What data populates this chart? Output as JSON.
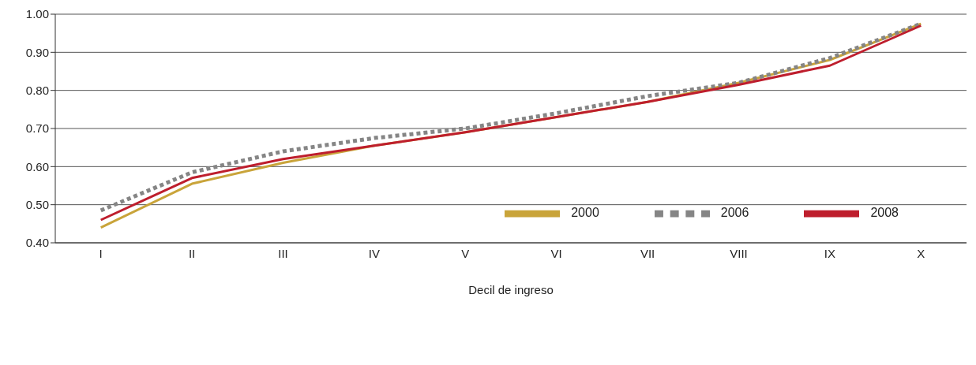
{
  "chart_data": {
    "type": "line",
    "xlabel": "Decil de ingreso",
    "categories": [
      "I",
      "II",
      "III",
      "IV",
      "V",
      "VI",
      "VII",
      "VIII",
      "IX",
      "X"
    ],
    "series": [
      {
        "name": "2000",
        "color": "#c9a43a",
        "values": [
          0.44,
          0.555,
          0.61,
          0.655,
          0.69,
          0.73,
          0.77,
          0.82,
          0.88,
          0.975
        ]
      },
      {
        "name": "2006",
        "color": "#858585",
        "line_style": "dotted",
        "values": [
          0.485,
          0.585,
          0.64,
          0.675,
          0.7,
          0.74,
          0.785,
          0.82,
          0.885,
          0.975
        ]
      },
      {
        "name": "2008",
        "color": "#be1e2d",
        "values": [
          0.46,
          0.57,
          0.62,
          0.655,
          0.69,
          0.73,
          0.77,
          0.815,
          0.865,
          0.97
        ]
      }
    ],
    "ylim": [
      0.4,
      1.0
    ],
    "yticks": [
      {
        "value": 0.4,
        "label": "0.40"
      },
      {
        "value": 0.5,
        "label": "0.50"
      },
      {
        "value": 0.6,
        "label": "0.60"
      },
      {
        "value": 0.7,
        "label": "0.70"
      },
      {
        "value": 0.8,
        "label": "0.80"
      },
      {
        "value": 0.9,
        "label": "0.90"
      },
      {
        "value": 1.0,
        "label": "1.00"
      }
    ],
    "grid": "y",
    "legend": "bottom right",
    "marker": "none",
    "line_style": "solid"
  }
}
